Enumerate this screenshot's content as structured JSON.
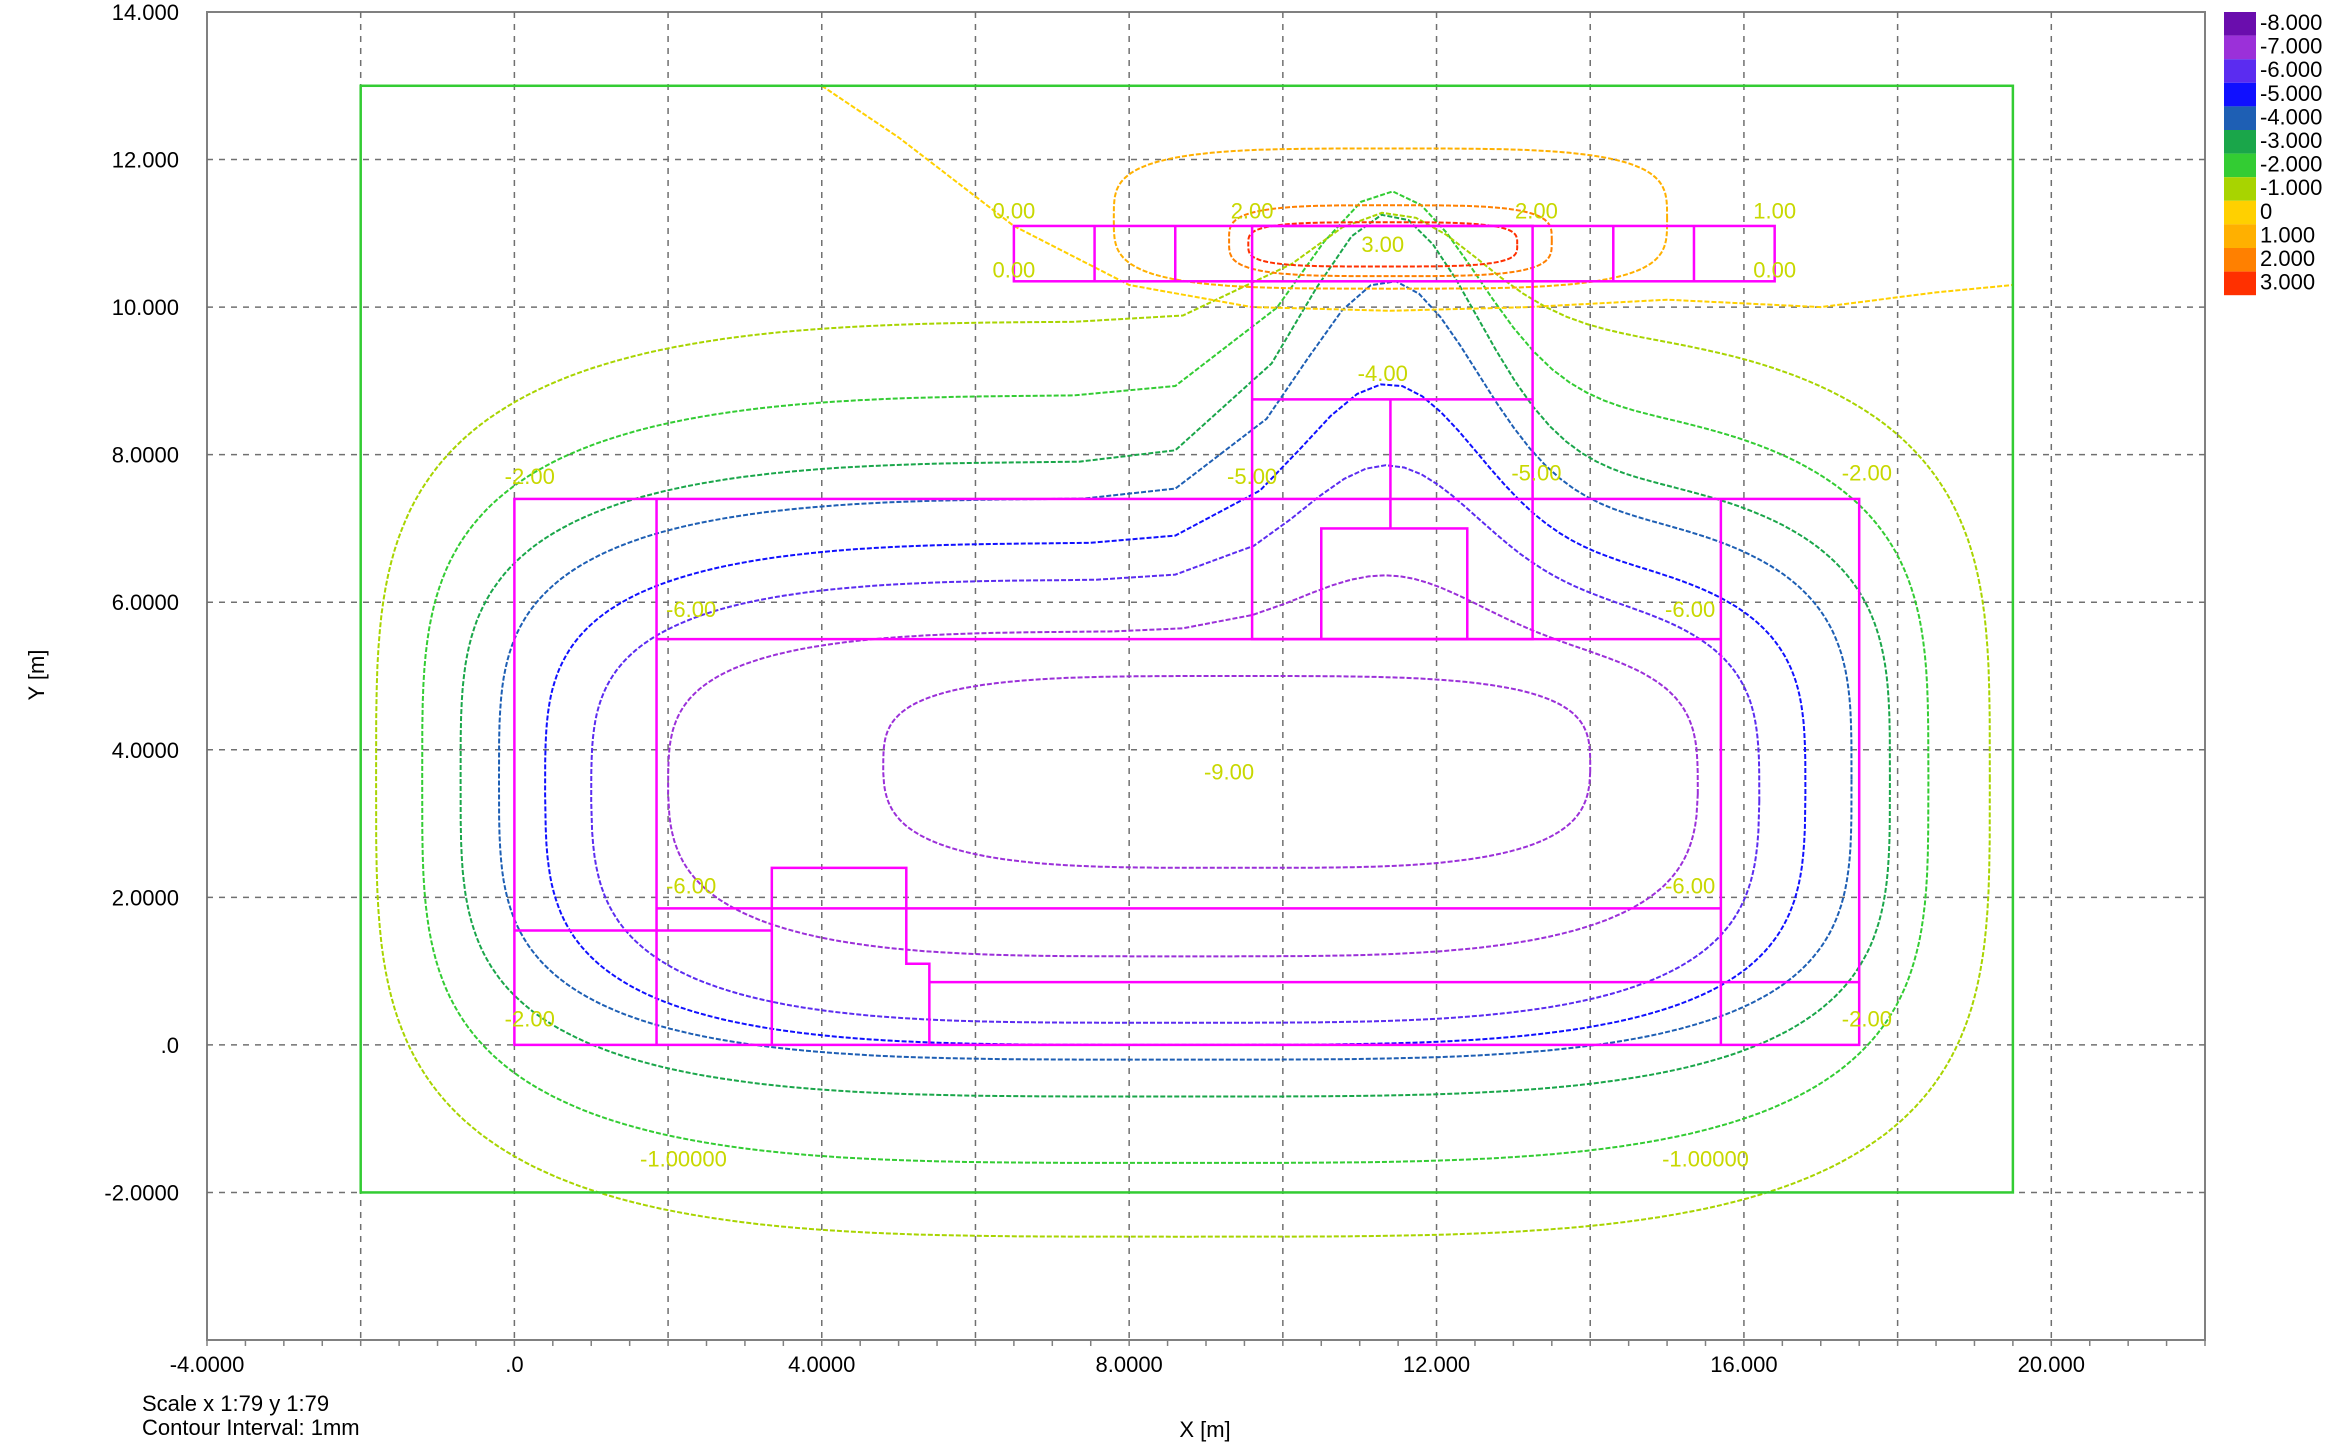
{
  "chart_data": {
    "type": "contour",
    "xlabel": "X [m]",
    "ylabel": "Y [m]",
    "xlim": [
      -4,
      22
    ],
    "ylim": [
      -4,
      14
    ],
    "x_ticks": [
      "-4.0000",
      ".0",
      "4.0000",
      "8.0000",
      "12.000",
      "16.000",
      "20.000"
    ],
    "x_tick_values": [
      -4,
      0,
      4,
      8,
      12,
      16,
      20
    ],
    "y_ticks": [
      "14.000",
      "12.000",
      "10.000",
      "8.0000",
      "6.0000",
      "4.0000",
      "2.0000",
      ".0",
      "-2.0000"
    ],
    "y_tick_values": [
      14,
      12,
      10,
      8,
      6,
      4,
      2,
      0,
      -2
    ],
    "grid": true,
    "legend_position": "top-right",
    "legend": [
      {
        "label": "-8.000",
        "color": "#6a0dad"
      },
      {
        "label": "-7.000",
        "color": "#9b30d9"
      },
      {
        "label": "-6.000",
        "color": "#5b2cf0"
      },
      {
        "label": "-5.000",
        "color": "#1010ff"
      },
      {
        "label": "-4.000",
        "color": "#1e5fb4"
      },
      {
        "label": "-3.000",
        "color": "#1aa64a"
      },
      {
        "label": "-2.000",
        "color": "#33cc33"
      },
      {
        "label": "-1.000",
        "color": "#a8d400"
      },
      {
        "label": "0",
        "color": "#ffd000"
      },
      {
        "label": "1.000",
        "color": "#ffb000"
      },
      {
        "label": "2.000",
        "color": "#ff8000"
      },
      {
        "label": "3.000",
        "color": "#ff3000"
      }
    ],
    "boundary_box": {
      "x": [
        -2,
        19.5
      ],
      "y": [
        -2,
        13
      ]
    },
    "contour_labels": [
      {
        "text": "0.00",
        "x": 6.5,
        "y": 11.2
      },
      {
        "text": "0.00",
        "x": 6.5,
        "y": 10.4
      },
      {
        "text": "2.00",
        "x": 9.6,
        "y": 11.2
      },
      {
        "text": "2.00",
        "x": 13.3,
        "y": 11.2
      },
      {
        "text": "3.00",
        "x": 11.3,
        "y": 10.75
      },
      {
        "text": "1.00",
        "x": 16.4,
        "y": 11.2
      },
      {
        "text": "0.00",
        "x": 16.4,
        "y": 10.4
      },
      {
        "text": "-4.00",
        "x": 11.3,
        "y": 9.0
      },
      {
        "text": "-2.00",
        "x": 0.2,
        "y": 7.6
      },
      {
        "text": "-5.00",
        "x": 9.6,
        "y": 7.6
      },
      {
        "text": "-5.00",
        "x": 13.3,
        "y": 7.65
      },
      {
        "text": "-2.00",
        "x": 17.6,
        "y": 7.65
      },
      {
        "text": "-6.00",
        "x": 2.3,
        "y": 5.8
      },
      {
        "text": "-6.00",
        "x": 15.3,
        "y": 5.8
      },
      {
        "text": "-9.00",
        "x": 9.3,
        "y": 3.6
      },
      {
        "text": "-6.00",
        "x": 2.3,
        "y": 2.05
      },
      {
        "text": "-6.00",
        "x": 15.3,
        "y": 2.05
      },
      {
        "text": "-2.00",
        "x": 0.2,
        "y": 0.25
      },
      {
        "text": "-2.00",
        "x": 17.6,
        "y": 0.25
      },
      {
        "text": "-1.00000",
        "x": 2.2,
        "y": -1.65
      },
      {
        "text": "-1.00000",
        "x": 15.5,
        "y": -1.65
      }
    ],
    "structure_color": "#ff00ff",
    "structure_rects": [
      [
        0,
        0,
        17.5,
        7.4
      ],
      [
        1.85,
        0,
        1.85,
        7.4
      ],
      [
        15.7,
        0,
        15.7,
        7.4
      ],
      [
        1.85,
        5.5,
        15.7,
        5.5
      ],
      [
        1.85,
        1.85,
        15.7,
        1.85
      ],
      [
        0,
        1.55,
        3.35,
        1.55
      ],
      [
        5.4,
        0.85,
        17.5,
        0.85
      ],
      [
        9.6,
        5.5,
        13.25,
        11.1
      ],
      [
        9.6,
        8.75,
        13.25,
        8.75
      ],
      [
        11.4,
        7.0,
        11.4,
        8.75
      ],
      [
        10.5,
        5.5,
        12.4,
        7.0
      ],
      [
        6.5,
        10.35,
        16.4,
        11.1
      ],
      [
        7.55,
        10.35,
        7.55,
        11.1
      ],
      [
        8.6,
        10.35,
        8.6,
        11.1
      ],
      [
        14.3,
        10.35,
        14.3,
        11.1
      ],
      [
        15.35,
        10.35,
        15.35,
        11.1
      ]
    ],
    "structure_polyline": [
      [
        3.35,
        0
      ],
      [
        3.35,
        2.4
      ],
      [
        5.1,
        2.4
      ],
      [
        5.1,
        1.1
      ],
      [
        5.4,
        1.1
      ],
      [
        5.4,
        0
      ]
    ],
    "contours": [
      {
        "level": -9,
        "color": "#9b30d9",
        "cx": 9.4,
        "cy": 3.7,
        "rx": 4.6,
        "ry": 1.3,
        "skew": 0.35
      },
      {
        "level": -7,
        "color": "#9b30d9",
        "cx": 8.7,
        "cy": 3.4,
        "rx": 6.7,
        "ry": 2.2,
        "skew": 0.35,
        "bump": 0.8
      },
      {
        "level": -6,
        "color": "#5b2cf0",
        "cx": 8.6,
        "cy": 3.3,
        "rx": 7.6,
        "ry": 3.0,
        "skew": 0.2,
        "bump": 1.6
      },
      {
        "level": -5,
        "color": "#1010ff",
        "cx": 8.6,
        "cy": 3.4,
        "rx": 8.2,
        "ry": 3.4,
        "skew": 0.1,
        "bump": 2.2
      },
      {
        "level": -4,
        "color": "#1e5fb4",
        "cx": 8.6,
        "cy": 3.6,
        "rx": 8.8,
        "ry": 3.8,
        "skew": 0.0,
        "bump": 3.0
      },
      {
        "level": -3,
        "color": "#1aa64a",
        "cx": 8.6,
        "cy": 3.6,
        "rx": 9.3,
        "ry": 4.3,
        "skew": 0.0,
        "bump": 3.4
      },
      {
        "level": -2,
        "color": "#33cc33",
        "cx": 8.6,
        "cy": 3.6,
        "rx": 9.8,
        "ry": 5.2,
        "skew": 0.0,
        "bump": 2.8
      },
      {
        "level": -1,
        "color": "#a8d400",
        "cx": 8.7,
        "cy": 3.6,
        "rx": 10.5,
        "ry": 6.2,
        "skew": 0.0,
        "bump": 1.5
      }
    ],
    "top_contours": [
      {
        "level": 3,
        "color": "#ff3000",
        "cx": 11.3,
        "cy": 10.85,
        "rx": 1.75,
        "ry": 0.3
      },
      {
        "level": 2,
        "color": "#ff8000",
        "cx": 11.4,
        "cy": 10.9,
        "rx": 2.1,
        "ry": 0.48
      },
      {
        "level": 1,
        "color": "#ffb000",
        "cx": 11.4,
        "cy": 11.2,
        "rx": 3.6,
        "ry": 0.95
      }
    ]
  },
  "footer": {
    "scale": "Scale x 1:79  y 1:79",
    "contour_interval": "Contour Interval:  1mm"
  }
}
